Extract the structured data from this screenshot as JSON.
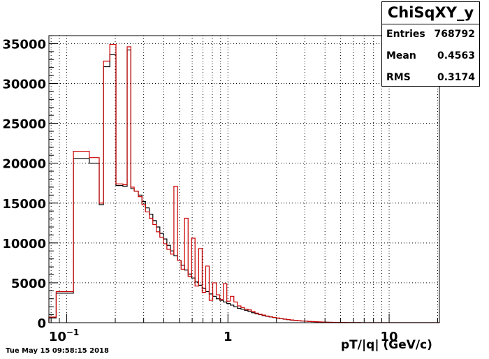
{
  "stats": {
    "title": "ChiSqXY_y",
    "rows": [
      {
        "label": "Entries",
        "value": "768792"
      },
      {
        "label": "Mean",
        "value": "0.4563"
      },
      {
        "label": "RMS",
        "value": "0.3174"
      }
    ]
  },
  "timestamp": "Tue May 15 09:58:15 2018",
  "chart_data": {
    "type": "histogram",
    "title": "ChiSqXY_y",
    "xlabel": "pT/|q| (GeV/c)",
    "ylabel": "",
    "x_scale": "log",
    "xlim": [
      0.0775,
      20.5
    ],
    "ylim": [
      0,
      36000
    ],
    "grid": true,
    "x_tick_labels": [
      "10^-1",
      "1",
      "10"
    ],
    "y_tick_labels": [
      "0",
      "5000",
      "10000",
      "15000",
      "20000",
      "25000",
      "30000",
      "35000"
    ],
    "series": [
      {
        "color": "#000000",
        "bins": [
          [
            0.0775,
            0.086,
            600
          ],
          [
            0.086,
            0.11,
            3700
          ],
          [
            0.11,
            0.138,
            20600
          ],
          [
            0.138,
            0.159,
            20000
          ],
          [
            0.159,
            0.169,
            14800
          ],
          [
            0.169,
            0.185,
            32100
          ],
          [
            0.185,
            0.202,
            33600
          ],
          [
            0.202,
            0.223,
            17200
          ],
          [
            0.223,
            0.237,
            17100
          ],
          [
            0.237,
            0.25,
            34200
          ],
          [
            0.25,
            0.262,
            16800
          ],
          [
            0.262,
            0.278,
            16500
          ],
          [
            0.278,
            0.293,
            16000
          ],
          [
            0.293,
            0.308,
            15200
          ],
          [
            0.308,
            0.325,
            14400
          ],
          [
            0.325,
            0.342,
            13600
          ],
          [
            0.342,
            0.36,
            12800
          ],
          [
            0.36,
            0.378,
            12000
          ],
          [
            0.378,
            0.398,
            11200
          ],
          [
            0.398,
            0.418,
            10500
          ],
          [
            0.418,
            0.44,
            9700
          ],
          [
            0.44,
            0.462,
            9000
          ],
          [
            0.462,
            0.487,
            8400
          ],
          [
            0.487,
            0.512,
            7800
          ],
          [
            0.512,
            0.538,
            7200
          ],
          [
            0.538,
            0.566,
            6600
          ],
          [
            0.566,
            0.595,
            6100
          ],
          [
            0.595,
            0.625,
            5600
          ],
          [
            0.625,
            0.658,
            5100
          ],
          [
            0.658,
            0.692,
            4700
          ],
          [
            0.692,
            0.728,
            4300
          ],
          [
            0.728,
            0.765,
            3900
          ],
          [
            0.765,
            0.805,
            3600
          ],
          [
            0.805,
            0.846,
            3300
          ],
          [
            0.846,
            0.89,
            3000
          ],
          [
            0.89,
            0.936,
            2800
          ],
          [
            0.936,
            0.984,
            2600
          ],
          [
            0.984,
            1.035,
            2400
          ],
          [
            1.035,
            1.088,
            2200
          ],
          [
            1.088,
            1.145,
            2000
          ],
          [
            1.145,
            1.204,
            1800
          ],
          [
            1.204,
            1.266,
            1700
          ],
          [
            1.266,
            1.331,
            1550
          ],
          [
            1.331,
            1.4,
            1400
          ],
          [
            1.4,
            1.472,
            1250
          ],
          [
            1.472,
            1.548,
            1100
          ],
          [
            1.548,
            1.628,
            1000
          ],
          [
            1.628,
            1.712,
            900
          ],
          [
            1.712,
            1.8,
            800
          ],
          [
            1.8,
            1.893,
            720
          ],
          [
            1.893,
            1.991,
            640
          ],
          [
            1.991,
            2.093,
            570
          ],
          [
            2.093,
            2.201,
            500
          ],
          [
            2.201,
            2.315,
            440
          ],
          [
            2.315,
            2.434,
            380
          ],
          [
            2.434,
            2.56,
            330
          ],
          [
            2.56,
            2.692,
            290
          ],
          [
            2.692,
            2.831,
            250
          ],
          [
            2.831,
            2.977,
            210
          ],
          [
            2.977,
            3.13,
            180
          ],
          [
            3.13,
            3.292,
            150
          ],
          [
            3.292,
            3.462,
            130
          ],
          [
            3.462,
            3.64,
            110
          ],
          [
            3.64,
            3.828,
            90
          ],
          [
            3.828,
            4.026,
            75
          ],
          [
            4.026,
            4.233,
            60
          ],
          [
            4.233,
            4.452,
            50
          ],
          [
            4.452,
            4.681,
            40
          ],
          [
            4.681,
            4.923,
            33
          ],
          [
            4.923,
            5.177,
            27
          ],
          [
            5.177,
            5.444,
            22
          ],
          [
            5.444,
            5.725,
            18
          ],
          [
            5.725,
            6.02,
            14
          ],
          [
            6.02,
            6.33,
            11
          ],
          [
            6.33,
            6.657,
            9
          ],
          [
            6.657,
            7.0,
            7
          ],
          [
            7.0,
            20.5,
            5
          ]
        ]
      },
      {
        "color": "#cc0000",
        "bins": [
          [
            0.0775,
            0.086,
            700
          ],
          [
            0.086,
            0.11,
            3900
          ],
          [
            0.11,
            0.138,
            21500
          ],
          [
            0.138,
            0.159,
            20700
          ],
          [
            0.159,
            0.169,
            15000
          ],
          [
            0.169,
            0.185,
            32800
          ],
          [
            0.185,
            0.202,
            34900
          ],
          [
            0.202,
            0.223,
            17400
          ],
          [
            0.223,
            0.237,
            17300
          ],
          [
            0.237,
            0.25,
            34600
          ],
          [
            0.25,
            0.262,
            17000
          ],
          [
            0.262,
            0.278,
            16500
          ],
          [
            0.278,
            0.293,
            15800
          ],
          [
            0.293,
            0.308,
            14800
          ],
          [
            0.308,
            0.325,
            13900
          ],
          [
            0.325,
            0.342,
            13100
          ],
          [
            0.342,
            0.36,
            12300
          ],
          [
            0.36,
            0.378,
            11400
          ],
          [
            0.378,
            0.398,
            10700
          ],
          [
            0.398,
            0.418,
            9900
          ],
          [
            0.418,
            0.44,
            9200
          ],
          [
            0.44,
            0.462,
            8600
          ],
          [
            0.462,
            0.487,
            17100
          ],
          [
            0.487,
            0.512,
            7800
          ],
          [
            0.512,
            0.538,
            6700
          ],
          [
            0.538,
            0.566,
            13100
          ],
          [
            0.566,
            0.595,
            5800
          ],
          [
            0.595,
            0.625,
            10600
          ],
          [
            0.625,
            0.658,
            4600
          ],
          [
            0.658,
            0.692,
            9300
          ],
          [
            0.692,
            0.728,
            3800
          ],
          [
            0.728,
            0.765,
            7100
          ],
          [
            0.765,
            0.805,
            2800
          ],
          [
            0.805,
            0.846,
            5000
          ],
          [
            0.846,
            0.89,
            3500
          ],
          [
            0.89,
            0.936,
            2900
          ],
          [
            0.936,
            0.984,
            4900
          ],
          [
            0.984,
            1.035,
            2700
          ],
          [
            1.035,
            1.088,
            3300
          ],
          [
            1.088,
            1.145,
            2600
          ],
          [
            1.145,
            1.204,
            2100
          ],
          [
            1.204,
            1.266,
            1900
          ],
          [
            1.266,
            1.331,
            1700
          ],
          [
            1.331,
            1.4,
            1600
          ],
          [
            1.4,
            1.472,
            1400
          ],
          [
            1.472,
            1.548,
            1200
          ],
          [
            1.548,
            1.628,
            1050
          ],
          [
            1.628,
            1.712,
            950
          ],
          [
            1.712,
            1.8,
            830
          ],
          [
            1.8,
            1.893,
            740
          ],
          [
            1.893,
            1.991,
            660
          ],
          [
            1.991,
            2.093,
            580
          ],
          [
            2.093,
            2.201,
            510
          ],
          [
            2.201,
            2.315,
            450
          ],
          [
            2.315,
            2.434,
            390
          ],
          [
            2.434,
            2.56,
            340
          ],
          [
            2.56,
            2.692,
            300
          ],
          [
            2.692,
            2.831,
            255
          ],
          [
            2.831,
            2.977,
            215
          ],
          [
            2.977,
            3.13,
            185
          ],
          [
            3.13,
            3.292,
            155
          ],
          [
            3.292,
            3.462,
            130
          ],
          [
            3.462,
            3.64,
            110
          ],
          [
            3.64,
            3.828,
            92
          ],
          [
            3.828,
            4.026,
            76
          ],
          [
            4.026,
            4.233,
            62
          ],
          [
            4.233,
            4.452,
            50
          ],
          [
            4.452,
            4.681,
            41
          ],
          [
            4.681,
            4.923,
            34
          ],
          [
            4.923,
            5.177,
            28
          ],
          [
            5.177,
            5.444,
            22
          ],
          [
            5.444,
            5.725,
            18
          ],
          [
            5.725,
            6.02,
            14
          ],
          [
            6.02,
            6.33,
            11
          ],
          [
            6.33,
            6.657,
            9
          ],
          [
            6.657,
            7.0,
            7
          ],
          [
            7.0,
            20.5,
            5
          ]
        ]
      }
    ]
  }
}
